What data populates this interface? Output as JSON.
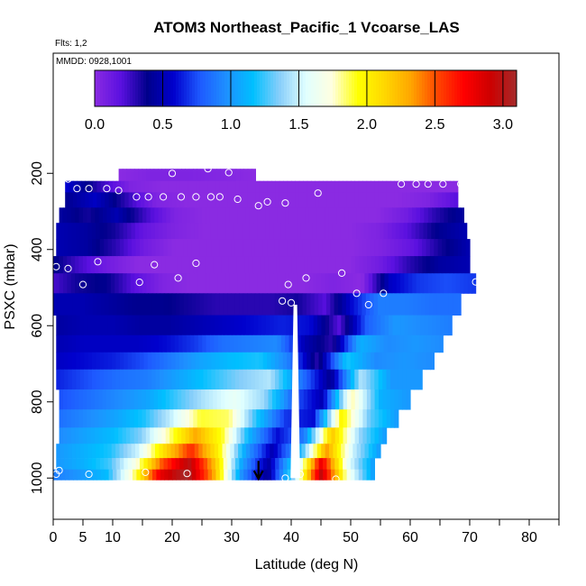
{
  "chart_data": {
    "type": "heatmap",
    "title": "ATOM3 Northeast_Pacific_1 Vcoarse_LAS",
    "subtitle": "Flts: 1,2",
    "annotation": "MMDD: 0928,1001",
    "xlabel": "Latitude (deg N)",
    "ylabel": "PSXC (mbar)",
    "xlim": [
      0,
      85
    ],
    "ylim": [
      1000,
      50
    ],
    "y_reversed": true,
    "x_ticks": [
      0,
      5,
      10,
      20,
      30,
      40,
      50,
      60,
      70,
      80
    ],
    "x_tick_labels": [
      "0",
      "5",
      "10",
      "20",
      "30",
      "40",
      "50",
      "60",
      "70",
      "80"
    ],
    "x_minor_ticks": [
      15,
      25,
      35,
      45,
      55,
      65,
      75,
      85
    ],
    "y_ticks": [
      200,
      400,
      600,
      800,
      1000
    ],
    "y_tick_labels": [
      "200",
      "400",
      "600",
      "800",
      "1000"
    ],
    "colorbar": {
      "min": 0.0,
      "max": 3.1,
      "ticks": [
        0.0,
        0.5,
        1.0,
        1.5,
        2.0,
        2.5,
        3.0
      ],
      "tick_labels": [
        "0.0",
        "0.5",
        "1.0",
        "1.5",
        "2.0",
        "2.5",
        "3.0"
      ],
      "palette": [
        "#8a2be2",
        "#5a10e0",
        "#00008b",
        "#0000cd",
        "#1e5aff",
        "#1e90ff",
        "#00bfff",
        "#87cefa",
        "#e0ffff",
        "#ffffe0",
        "#ffff00",
        "#ffd700",
        "#ffa500",
        "#ff4500",
        "#ff0000",
        "#cd0000",
        "#a52a2a"
      ]
    },
    "layers": [
      {
        "p": 210,
        "x0": 11,
        "x1": 34,
        "v": [
          0.0,
          0.05,
          0.05,
          0.03,
          0.0
        ]
      },
      {
        "p": 230,
        "x0": 2,
        "x1": 68,
        "v": [
          0.6,
          0.3,
          0.05,
          0.0,
          0.0,
          0.0,
          0.0,
          0.0,
          0.0,
          0.0,
          0.0,
          0.0,
          0.0
        ]
      },
      {
        "p": 270,
        "x0": 2,
        "x1": 68,
        "v": [
          0.4,
          0.55,
          0.3,
          0.05,
          0.0,
          0.0,
          0.0,
          0.0,
          0.0,
          0.0,
          0.0,
          0.0,
          0.05,
          0.2
        ]
      },
      {
        "p": 310,
        "x0": 1,
        "x1": 69,
        "v": [
          0.45,
          0.35,
          0.5,
          0.25,
          0.05,
          0.0,
          0.0,
          0.0,
          0.0,
          0.0,
          0.0,
          0.0,
          0.1,
          0.3,
          0.45
        ]
      },
      {
        "p": 350,
        "x0": 0.5,
        "x1": 69.5,
        "v": [
          0.5,
          0.45,
          0.35,
          0.15,
          0.05,
          0.0,
          0.0,
          0.0,
          0.0,
          0.0,
          0.0,
          0.05,
          0.2,
          0.4,
          0.5
        ]
      },
      {
        "p": 395,
        "x0": 0.5,
        "x1": 70,
        "v": [
          0.5,
          0.45,
          0.3,
          0.1,
          0.0,
          0.0,
          0.0,
          0.0,
          0.0,
          0.0,
          0.0,
          0.05,
          0.15,
          0.35,
          0.5
        ]
      },
      {
        "p": 440,
        "x0": -1,
        "x1": 70,
        "v": [
          0.45,
          0.25,
          0.1,
          0.0,
          0.0,
          0.0,
          0.0,
          0.0,
          0.0,
          0.0,
          0.0,
          0.1,
          0.3,
          0.45,
          0.5
        ]
      },
      {
        "p": 485,
        "x0": -1,
        "x1": 71,
        "v": [
          0.2,
          0.35,
          0.4,
          0.2,
          0.05,
          0.0,
          0.0,
          0.0,
          0.0,
          0.0,
          0.05,
          0.0,
          0.55,
          0.7,
          0.75,
          0.7
        ]
      },
      {
        "p": 545,
        "x0": 0,
        "x1": 68.5,
        "v": [
          0.5,
          0.5,
          0.45,
          0.4,
          0.4,
          0.35,
          0.3,
          0.3,
          0.3,
          0.35,
          0.2,
          0.6,
          0.9,
          0.9,
          0.85,
          0.85
        ]
      },
      {
        "p": 600,
        "x0": 0.5,
        "x1": 67,
        "v": [
          0.45,
          0.5,
          0.5,
          0.45,
          0.45,
          0.5,
          0.55,
          0.6,
          0.65,
          0.6,
          0.2,
          0.8,
          1.0,
          0.95,
          0.9
        ]
      },
      {
        "p": 650,
        "x0": 0.5,
        "x1": 65.5,
        "v": [
          0.5,
          0.55,
          0.55,
          0.55,
          0.6,
          0.7,
          0.85,
          0.9,
          0.95,
          0.5,
          0.3,
          1.1,
          0.95,
          1.0,
          0.95
        ]
      },
      {
        "p": 690,
        "x0": 0.5,
        "x1": 64,
        "v": [
          0.55,
          0.6,
          0.65,
          0.75,
          0.9,
          1.05,
          1.15,
          1.2,
          0.9,
          0.3,
          1.2,
          0.95,
          1.0,
          0.95
        ]
      },
      {
        "p": 740,
        "x0": 0.5,
        "x1": 62,
        "v": [
          0.65,
          0.75,
          0.85,
          0.9,
          1.05,
          1.2,
          1.35,
          1.45,
          0.9,
          0.4,
          1.45,
          1.0,
          1.0
        ]
      },
      {
        "p": 795,
        "x0": 1,
        "x1": 60,
        "v": [
          0.75,
          0.85,
          0.95,
          1.05,
          1.25,
          1.45,
          1.6,
          1.4,
          0.8,
          0.5,
          1.8,
          1.1,
          1.0
        ]
      },
      {
        "p": 845,
        "x0": 1,
        "x1": 58,
        "v": [
          0.85,
          0.95,
          1.05,
          1.2,
          1.5,
          1.9,
          1.85,
          1.2,
          0.7,
          0.6,
          2.0,
          1.3,
          1.0
        ]
      },
      {
        "p": 890,
        "x0": 1,
        "x1": 56,
        "v": [
          0.95,
          1.05,
          1.15,
          1.35,
          1.8,
          2.3,
          1.9,
          1.1,
          0.6,
          0.9,
          2.2,
          1.4,
          1.0
        ]
      },
      {
        "p": 930,
        "x0": 0.5,
        "x1": 55,
        "v": [
          1.0,
          1.1,
          1.2,
          1.5,
          2.1,
          2.6,
          2.0,
          1.05,
          0.5,
          1.1,
          2.35,
          1.5,
          1.0
        ]
      },
      {
        "p": 965,
        "x0": 0.5,
        "x1": 54,
        "v": [
          1.0,
          1.1,
          1.25,
          1.7,
          2.5,
          3.0,
          2.2,
          1.05,
          0.45,
          1.3,
          2.8,
          1.6,
          1.0
        ]
      },
      {
        "p": 990,
        "x0": 0,
        "x1": 54,
        "v": [
          0.9,
          1.0,
          1.15,
          1.8,
          2.8,
          3.1,
          2.3,
          1.0,
          0.4,
          1.4,
          2.95,
          1.7,
          1.0
        ]
      }
    ],
    "gap": {
      "x_center": 40.7,
      "p_top": 545,
      "p_bottom": 1000,
      "half_width": 0.8
    },
    "sample_points": [
      [
        2.5,
        215
      ],
      [
        4,
        240
      ],
      [
        6,
        240
      ],
      [
        9,
        240
      ],
      [
        11,
        245
      ],
      [
        14,
        262
      ],
      [
        16,
        262
      ],
      [
        18.5,
        262
      ],
      [
        20,
        200
      ],
      [
        21.5,
        262
      ],
      [
        24,
        262
      ],
      [
        26.5,
        262
      ],
      [
        26,
        188
      ],
      [
        28,
        262
      ],
      [
        29.5,
        198
      ],
      [
        31,
        268
      ],
      [
        34.5,
        285
      ],
      [
        36,
        275
      ],
      [
        39,
        278
      ],
      [
        44.5,
        252
      ],
      [
        58.5,
        228
      ],
      [
        61,
        228
      ],
      [
        63,
        228
      ],
      [
        65.5,
        228
      ],
      [
        68.5,
        228
      ],
      [
        7.5,
        432
      ],
      [
        17,
        440
      ],
      [
        24,
        436
      ],
      [
        2.5,
        450
      ],
      [
        5,
        492
      ],
      [
        14.5,
        486
      ],
      [
        21,
        475
      ],
      [
        39.5,
        492
      ],
      [
        42.5,
        475
      ],
      [
        48.5,
        462
      ],
      [
        51,
        515
      ],
      [
        53,
        545
      ],
      [
        55.5,
        515
      ],
      [
        71,
        485
      ],
      [
        38.5,
        535
      ],
      [
        40,
        540
      ],
      [
        0.5,
        445
      ],
      [
        0.5,
        990
      ],
      [
        1,
        980
      ],
      [
        6,
        990
      ],
      [
        15.5,
        985
      ],
      [
        22.5,
        988
      ],
      [
        39,
        1000
      ],
      [
        41.5,
        990
      ],
      [
        47.5,
        1003
      ]
    ],
    "arrow": {
      "x": 34.5,
      "p_from": 955,
      "p_to": 1002
    }
  }
}
